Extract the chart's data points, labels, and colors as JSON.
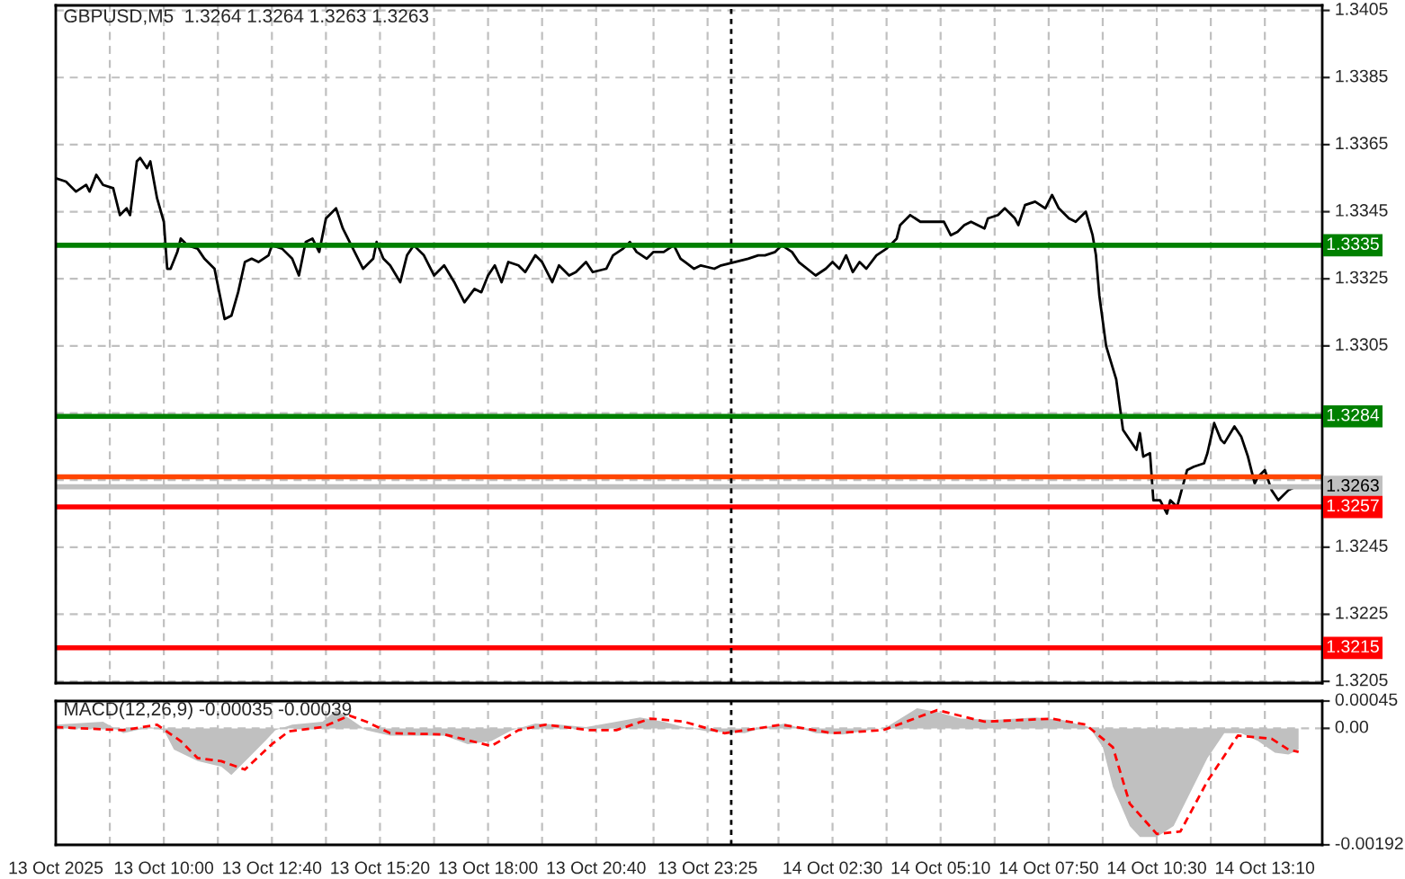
{
  "chart_data": [
    {
      "type": "line",
      "title": "GBPUSD,M5  1.3264 1.3264 1.3263 1.3263",
      "tick_labels": "y",
      "grid": true,
      "xlim": [
        "2025-10-13T07:20",
        "2025-10-14T14:35"
      ],
      "xticks": [
        {
          "value": "2025-10-13T07:20",
          "label": null
        },
        {
          "value": "2025-10-13T08:40",
          "label": null
        },
        {
          "value": "2025-10-13T10:00",
          "label": null
        },
        {
          "value": "2025-10-13T11:20",
          "label": null
        },
        {
          "value": "2025-10-13T12:40",
          "label": null
        },
        {
          "value": "2025-10-13T14:00",
          "label": null
        },
        {
          "value": "2025-10-13T15:20",
          "label": null
        },
        {
          "value": "2025-10-13T16:40",
          "label": null
        },
        {
          "value": "2025-10-13T18:00",
          "label": null
        },
        {
          "value": "2025-10-13T19:20",
          "label": null
        },
        {
          "value": "2025-10-13T20:40",
          "label": null
        },
        {
          "value": "2025-10-13T22:05",
          "label": null
        },
        {
          "value": "2025-10-13T23:25",
          "label": null
        },
        {
          "value": "2025-10-14T01:10",
          "label": null
        },
        {
          "value": "2025-10-14T02:30",
          "label": null
        },
        {
          "value": "2025-10-14T03:50",
          "label": null
        },
        {
          "value": "2025-10-14T05:10",
          "label": null
        },
        {
          "value": "2025-10-14T06:30",
          "label": null
        },
        {
          "value": "2025-10-14T07:50",
          "label": null
        },
        {
          "value": "2025-10-14T09:10",
          "label": null
        },
        {
          "value": "2025-10-14T10:30",
          "label": null
        },
        {
          "value": "2025-10-14T11:50",
          "label": null
        },
        {
          "value": "2025-10-14T13:10",
          "label": null
        }
      ],
      "ylim": [
        1.32045,
        1.34065
      ],
      "yticks": [
        1.3205,
        1.3225,
        1.3245,
        {
          "value": 1.3265,
          "label": null
        },
        {
          "value": 1.3285,
          "label": null
        },
        1.3305,
        1.3325,
        1.3345,
        1.3365,
        1.3385,
        1.3405
      ],
      "ref_lines": [
        {
          "axis": "y",
          "value": 1.3335,
          "label": "1.3335",
          "color": "#008000"
        },
        {
          "axis": "y",
          "value": 1.3284,
          "label": "1.3284",
          "color": "#008000"
        },
        {
          "axis": "y",
          "value": 1.3266,
          "color": "#ff4500"
        },
        {
          "axis": "y",
          "value": 1.3263,
          "label": "1.3263",
          "color": "#c0c0c0"
        },
        {
          "axis": "y",
          "value": 1.3257,
          "label": "1.3257",
          "color": "#ff0000"
        },
        {
          "axis": "y",
          "value": 1.3215,
          "label": "1.3215",
          "color": "#ff0000"
        },
        {
          "axis": "x",
          "value": "2025-10-14T00:00",
          "color": "#000000",
          "line_style": "dotted"
        }
      ],
      "series": [
        {
          "color": "#000000",
          "x": [
            "2025-10-13T07:20",
            "2025-10-13T07:35",
            "2025-10-13T07:50",
            "2025-10-13T08:05",
            "2025-10-13T08:10",
            "2025-10-13T08:20",
            "2025-10-13T08:30",
            "2025-10-13T08:45",
            "2025-10-13T08:55",
            "2025-10-13T09:05",
            "2025-10-13T09:10",
            "2025-10-13T09:20",
            "2025-10-13T09:25",
            "2025-10-13T09:35",
            "2025-10-13T09:40",
            "2025-10-13T09:50",
            "2025-10-13T10:00",
            "2025-10-13T10:05",
            "2025-10-13T10:10",
            "2025-10-13T10:20",
            "2025-10-13T10:25",
            "2025-10-13T10:35",
            "2025-10-13T10:50",
            "2025-10-13T11:00",
            "2025-10-13T11:15",
            "2025-10-13T11:30",
            "2025-10-13T11:40",
            "2025-10-13T11:50",
            "2025-10-13T12:00",
            "2025-10-13T12:10",
            "2025-10-13T12:20",
            "2025-10-13T12:35",
            "2025-10-13T12:40",
            "2025-10-13T12:55",
            "2025-10-13T13:10",
            "2025-10-13T13:20",
            "2025-10-13T13:30",
            "2025-10-13T13:40",
            "2025-10-13T13:50",
            "2025-10-13T14:00",
            "2025-10-13T14:15",
            "2025-10-13T14:25",
            "2025-10-13T14:35",
            "2025-10-13T14:45",
            "2025-10-13T14:55",
            "2025-10-13T15:10",
            "2025-10-13T15:15",
            "2025-10-13T15:25",
            "2025-10-13T15:35",
            "2025-10-13T15:50",
            "2025-10-13T16:00",
            "2025-10-13T16:10",
            "2025-10-13T16:25",
            "2025-10-13T16:40",
            "2025-10-13T16:55",
            "2025-10-13T17:10",
            "2025-10-13T17:25",
            "2025-10-13T17:40",
            "2025-10-13T17:50",
            "2025-10-13T18:00",
            "2025-10-13T18:10",
            "2025-10-13T18:20",
            "2025-10-13T18:30",
            "2025-10-13T18:45",
            "2025-10-13T18:55",
            "2025-10-13T19:10",
            "2025-10-13T19:20",
            "2025-10-13T19:35",
            "2025-10-13T19:45",
            "2025-10-13T20:00",
            "2025-10-13T20:10",
            "2025-10-13T20:25",
            "2025-10-13T20:35",
            "2025-10-13T20:55",
            "2025-10-13T21:05",
            "2025-10-13T21:20",
            "2025-10-13T21:30",
            "2025-10-13T21:40",
            "2025-10-13T21:55",
            "2025-10-13T22:05",
            "2025-10-13T22:20",
            "2025-10-13T22:35",
            "2025-10-13T22:45",
            "2025-10-13T23:05",
            "2025-10-13T23:15",
            "2025-10-13T23:35",
            "2025-10-13T23:45",
            "2025-10-14T00:25",
            "2025-10-14T00:40",
            "2025-10-14T00:50",
            "2025-10-14T01:05",
            "2025-10-14T01:15",
            "2025-10-14T01:30",
            "2025-10-14T01:40",
            "2025-10-14T02:05",
            "2025-10-14T02:20",
            "2025-10-14T02:30",
            "2025-10-14T02:40",
            "2025-10-14T02:50",
            "2025-10-14T03:00",
            "2025-10-14T03:10",
            "2025-10-14T03:20",
            "2025-10-14T03:35",
            "2025-10-14T03:50",
            "2025-10-14T04:05",
            "2025-10-14T04:10",
            "2025-10-14T04:25",
            "2025-10-14T04:40",
            "2025-10-14T05:00",
            "2025-10-14T05:15",
            "2025-10-14T05:25",
            "2025-10-14T05:35",
            "2025-10-14T05:45",
            "2025-10-14T05:55",
            "2025-10-14T06:15",
            "2025-10-14T06:20",
            "2025-10-14T06:35",
            "2025-10-14T06:45",
            "2025-10-14T07:00",
            "2025-10-14T07:05",
            "2025-10-14T07:15",
            "2025-10-14T07:30",
            "2025-10-14T07:45",
            "2025-10-14T07:55",
            "2025-10-14T08:05",
            "2025-10-14T08:20",
            "2025-10-14T08:30",
            "2025-10-14T08:45",
            "2025-10-14T08:55",
            "2025-10-14T09:00",
            "2025-10-14T09:05",
            "2025-10-14T09:15",
            "2025-10-14T09:30",
            "2025-10-14T09:40",
            "2025-10-14T10:00",
            "2025-10-14T10:05",
            "2025-10-14T10:10",
            "2025-10-14T10:20",
            "2025-10-14T10:25",
            "2025-10-14T10:35",
            "2025-10-14T10:45",
            "2025-10-14T10:50",
            "2025-10-14T11:00",
            "2025-10-14T11:15",
            "2025-10-14T11:25",
            "2025-10-14T11:40",
            "2025-10-14T11:45",
            "2025-10-14T11:55",
            "2025-10-14T12:05",
            "2025-10-14T12:10",
            "2025-10-14T12:25",
            "2025-10-14T12:35",
            "2025-10-14T12:45",
            "2025-10-14T12:55",
            "2025-10-14T13:00",
            "2025-10-14T13:10",
            "2025-10-14T13:20",
            "2025-10-14T13:30",
            "2025-10-14T13:45",
            "2025-10-14T13:55",
            "2025-10-14T14:00"
          ],
          "values": [
            1.3355,
            1.3354,
            1.3351,
            1.3353,
            1.3351,
            1.3356,
            1.3353,
            1.3352,
            1.3344,
            1.3346,
            1.3344,
            1.336,
            1.3361,
            1.3358,
            1.336,
            1.3349,
            1.3342,
            1.3328,
            1.3328,
            1.3333,
            1.3337,
            1.3335,
            1.3334,
            1.3331,
            1.3328,
            1.3313,
            1.3314,
            1.3321,
            1.333,
            1.3331,
            1.333,
            1.3332,
            1.3335,
            1.3334,
            1.3331,
            1.3326,
            1.3336,
            1.3337,
            1.3333,
            1.3343,
            1.3346,
            1.334,
            1.3336,
            1.3332,
            1.3328,
            1.3331,
            1.3336,
            1.3331,
            1.3329,
            1.3324,
            1.3332,
            1.3335,
            1.3332,
            1.3326,
            1.3329,
            1.3324,
            1.3318,
            1.3322,
            1.3321,
            1.3326,
            1.3329,
            1.3324,
            1.333,
            1.3329,
            1.3327,
            1.3332,
            1.333,
            1.3324,
            1.3329,
            1.3326,
            1.3327,
            1.333,
            1.3327,
            1.3328,
            1.3332,
            1.3334,
            1.3336,
            1.3333,
            1.3331,
            1.3333,
            1.3333,
            1.3335,
            1.3331,
            1.3328,
            1.3329,
            1.3328,
            1.3329,
            1.3331,
            1.3332,
            1.3332,
            1.3333,
            1.3335,
            1.3333,
            1.333,
            1.3326,
            1.3328,
            1.333,
            1.3328,
            1.3332,
            1.3327,
            1.333,
            1.3328,
            1.3332,
            1.3334,
            1.3337,
            1.3341,
            1.3344,
            1.3342,
            1.3342,
            1.3342,
            1.3338,
            1.3339,
            1.3341,
            1.3342,
            1.334,
            1.3343,
            1.3344,
            1.3346,
            1.3343,
            1.3341,
            1.3347,
            1.3348,
            1.3346,
            1.335,
            1.3346,
            1.3343,
            1.3342,
            1.3345,
            1.3338,
            1.3332,
            1.332,
            1.3305,
            1.3295,
            1.328,
            1.3274,
            1.3279,
            1.3272,
            1.3273,
            1.3259,
            1.3259,
            1.3255,
            1.3259,
            1.3257,
            1.3268,
            1.3269,
            1.327,
            1.3273,
            1.3282,
            1.3277,
            1.3276,
            1.3281,
            1.3278,
            1.3272,
            1.3264,
            1.3266,
            1.3268,
            1.3262,
            1.3259,
            1.3262,
            1.3263,
            1.3263
          ]
        }
      ]
    },
    {
      "type": "area",
      "title": "MACD(12,26,9) -0.00035 -0.00039",
      "grid": true,
      "xlim": [
        "2025-10-13T07:20",
        "2025-10-14T14:35"
      ],
      "xticks": [
        {
          "value": "2025-10-13T07:20",
          "label": "13 Oct 2025"
        },
        {
          "value": "2025-10-13T08:40",
          "label": null
        },
        {
          "value": "2025-10-13T10:00",
          "label": "13 Oct 10:00"
        },
        {
          "value": "2025-10-13T11:20",
          "label": null
        },
        {
          "value": "2025-10-13T12:40",
          "label": "13 Oct 12:40"
        },
        {
          "value": "2025-10-13T14:00",
          "label": null
        },
        {
          "value": "2025-10-13T15:20",
          "label": "13 Oct 15:20"
        },
        {
          "value": "2025-10-13T16:40",
          "label": null
        },
        {
          "value": "2025-10-13T18:00",
          "label": "13 Oct 18:00"
        },
        {
          "value": "2025-10-13T19:20",
          "label": null
        },
        {
          "value": "2025-10-13T20:40",
          "label": "13 Oct 20:40"
        },
        {
          "value": "2025-10-13T22:05",
          "label": null
        },
        {
          "value": "2025-10-13T23:25",
          "label": "13 Oct 23:25"
        },
        {
          "value": "2025-10-14T01:10",
          "label": null
        },
        {
          "value": "2025-10-14T02:30",
          "label": "14 Oct 02:30"
        },
        {
          "value": "2025-10-14T03:50",
          "label": null
        },
        {
          "value": "2025-10-14T05:10",
          "label": "14 Oct 05:10"
        },
        {
          "value": "2025-10-14T06:30",
          "label": null
        },
        {
          "value": "2025-10-14T07:50",
          "label": "14 Oct 07:50"
        },
        {
          "value": "2025-10-14T09:10",
          "label": null
        },
        {
          "value": "2025-10-14T10:30",
          "label": "14 Oct 10:30"
        },
        {
          "value": "2025-10-14T11:50",
          "label": null
        },
        {
          "value": "2025-10-14T13:10",
          "label": "14 Oct 13:10"
        }
      ],
      "ylim": [
        -0.00192,
        0.00045
      ],
      "yticks": [
        -0.00192,
        {
          "value": 0,
          "label": "0.00"
        },
        0.00045
      ],
      "ref_lines": [
        {
          "axis": "x",
          "value": "2025-10-14T00:00",
          "color": "#000000",
          "line_style": "dotted"
        }
      ],
      "series": [
        {
          "type": "area",
          "color": "#c0c0c0",
          "x": [
            "2025-10-13T07:20",
            "2025-10-13T08:30",
            "2025-10-13T09:00",
            "2025-10-13T09:40",
            "2025-10-13T10:00",
            "2025-10-13T10:15",
            "2025-10-13T10:50",
            "2025-10-13T11:25",
            "2025-10-13T11:40",
            "2025-10-13T12:05",
            "2025-10-13T12:30",
            "2025-10-13T12:45",
            "2025-10-13T13:10",
            "2025-10-13T13:55",
            "2025-10-13T14:15",
            "2025-10-13T14:35",
            "2025-10-13T15:00",
            "2025-10-13T15:35",
            "2025-10-13T16:15",
            "2025-10-13T16:55",
            "2025-10-13T17:30",
            "2025-10-13T18:05",
            "2025-10-13T18:35",
            "2025-10-13T19:10",
            "2025-10-13T19:45",
            "2025-10-13T20:25",
            "2025-10-13T21:10",
            "2025-10-13T21:45",
            "2025-10-13T22:20",
            "2025-10-13T22:50",
            "2025-10-13T23:25",
            "2025-10-14T00:20",
            "2025-10-14T00:50",
            "2025-10-14T01:20",
            "2025-10-14T02:05",
            "2025-10-14T02:45",
            "2025-10-14T03:50",
            "2025-10-14T04:35",
            "2025-10-14T05:05",
            "2025-10-14T05:40",
            "2025-10-14T06:30",
            "2025-10-14T07:30",
            "2025-10-14T08:10",
            "2025-10-14T08:50",
            "2025-10-14T09:10",
            "2025-10-14T09:25",
            "2025-10-14T09:50",
            "2025-10-14T10:05",
            "2025-10-14T10:30",
            "2025-10-14T10:55",
            "2025-10-14T11:20",
            "2025-10-14T11:45",
            "2025-10-14T12:10",
            "2025-10-14T12:35",
            "2025-10-14T13:00",
            "2025-10-14T13:25",
            "2025-10-14T13:45",
            "2025-10-14T14:00"
          ],
          "values": [
            6e-05,
            0.00011,
            -8e-05,
            2e-05,
            -3e-05,
            -0.00035,
            -0.00054,
            -0.00063,
            -0.00077,
            -0.00049,
            -0.00021,
            -3e-05,
            6e-05,
            0.00011,
            0.0003,
            0.00016,
            -3e-05,
            -0.00012,
            -0.00012,
            -0.00012,
            -0.00026,
            -0.00021,
            -3e-05,
            8e-05,
            6e-05,
            2e-05,
            0.00011,
            0.00018,
            0.00011,
            2e-05,
            -5e-05,
            -8e-05,
            2e-05,
            8e-05,
            -8e-05,
            -0.0001,
            2e-05,
            0.00033,
            0.00027,
            0.00016,
            0.00014,
            0.00018,
            0.00014,
            2e-05,
            -0.00031,
            -0.00096,
            -0.00161,
            -0.00179,
            -0.00179,
            -0.00161,
            -0.00105,
            -0.00049,
            -8e-05,
            -8e-05,
            -0.00021,
            -0.0004,
            -0.00043,
            -0.00035
          ]
        },
        {
          "type": "line",
          "color": "#ff0000",
          "line_style": "dashed",
          "x": [
            "2025-10-13T07:20",
            "2025-10-13T09:00",
            "2025-10-13T09:50",
            "2025-10-13T10:25",
            "2025-10-13T10:50",
            "2025-10-13T11:25",
            "2025-10-13T12:00",
            "2025-10-13T12:40",
            "2025-10-13T13:05",
            "2025-10-13T13:55",
            "2025-10-13T14:35",
            "2025-10-13T15:00",
            "2025-10-13T15:35",
            "2025-10-13T16:55",
            "2025-10-13T18:05",
            "2025-10-13T18:45",
            "2025-10-13T19:25",
            "2025-10-13T20:30",
            "2025-10-13T21:10",
            "2025-10-13T22:00",
            "2025-10-13T22:50",
            "2025-10-13T23:50",
            "2025-10-14T01:15",
            "2025-10-14T02:30",
            "2025-10-14T03:45",
            "2025-10-14T05:05",
            "2025-10-14T06:15",
            "2025-10-14T07:55",
            "2025-10-14T08:45",
            "2025-10-14T09:25",
            "2025-10-14T09:50",
            "2025-10-14T10:30",
            "2025-10-14T11:05",
            "2025-10-14T11:45",
            "2025-10-14T12:30",
            "2025-10-14T13:20",
            "2025-10-14T13:45",
            "2025-10-14T14:00"
          ],
          "values": [
            2e-05,
            -3e-05,
            6e-05,
            -0.00021,
            -0.00049,
            -0.00054,
            -0.00068,
            -0.00026,
            -5e-05,
            2e-05,
            0.00021,
            0.00011,
            -8e-05,
            -0.0001,
            -0.00029,
            -3e-05,
            6e-05,
            -3e-05,
            -3e-05,
            0.00016,
            0.00011,
            -8e-05,
            6e-05,
            -8e-05,
            -3e-05,
            0.0003,
            0.00011,
            0.00016,
            6e-05,
            -0.00031,
            -0.00124,
            -0.00174,
            -0.0017,
            -0.00087,
            -0.00012,
            -0.00017,
            -0.00035,
            -0.00039
          ]
        }
      ]
    }
  ]
}
